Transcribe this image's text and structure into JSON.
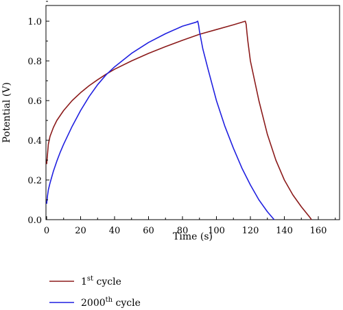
{
  "chart_data": {
    "type": "line",
    "xlabel": "Time (s)",
    "ylabel": "Potential (V)",
    "xlim": [
      0,
      170
    ],
    "ylim": [
      0,
      1.1
    ],
    "xticks": [
      0,
      20,
      40,
      60,
      80,
      100,
      120,
      140,
      160
    ],
    "yticks": [
      0.0,
      0.2,
      0.4,
      0.6,
      0.8,
      1.0
    ],
    "xtick_labels": [
      "0",
      "20",
      "40",
      "60",
      "80",
      "100",
      "120",
      "140",
      "160"
    ],
    "ytick_labels": [
      "0.0",
      "0.2",
      "0.4",
      "0.6",
      "0.8",
      "1.0"
    ],
    "grid": false,
    "legend_position": "bottom-left",
    "series": [
      {
        "name": "1st cycle",
        "name_base": "1",
        "name_sup": "st",
        "name_rest": " cycle",
        "color": "#8b1a1a",
        "x": [
          0,
          1,
          2,
          4,
          6,
          8,
          10,
          15,
          20,
          25,
          30,
          35,
          40,
          50,
          60,
          70,
          80,
          90,
          100,
          110,
          117,
          117.5,
          118,
          118.5,
          120,
          125,
          130,
          135,
          140,
          145,
          150,
          155,
          156
        ],
        "y": [
          0.28,
          0.38,
          0.42,
          0.465,
          0.5,
          0.525,
          0.55,
          0.6,
          0.64,
          0.675,
          0.705,
          0.733,
          0.758,
          0.8,
          0.838,
          0.872,
          0.904,
          0.934,
          0.958,
          0.982,
          1.0,
          0.985,
          0.94,
          0.9,
          0.8,
          0.6,
          0.43,
          0.3,
          0.2,
          0.125,
          0.065,
          0.012,
          0.0
        ]
      },
      {
        "name": "2000th cycle",
        "name_base": "2000",
        "name_sup": "th",
        "name_rest": " cycle",
        "color": "#1f1fe0",
        "x": [
          0,
          0.5,
          1,
          2,
          4,
          6,
          8,
          10,
          15,
          20,
          25,
          30,
          35,
          40,
          50,
          60,
          70,
          80,
          88,
          89,
          89.5,
          90,
          92,
          95,
          100,
          105,
          110,
          115,
          120,
          125,
          130,
          134
        ],
        "y": [
          0.08,
          0.12,
          0.15,
          0.185,
          0.245,
          0.295,
          0.34,
          0.38,
          0.47,
          0.55,
          0.62,
          0.68,
          0.73,
          0.77,
          0.838,
          0.893,
          0.937,
          0.975,
          0.995,
          1.0,
          0.98,
          0.95,
          0.86,
          0.76,
          0.6,
          0.47,
          0.36,
          0.26,
          0.175,
          0.1,
          0.04,
          0.0
        ]
      }
    ]
  }
}
